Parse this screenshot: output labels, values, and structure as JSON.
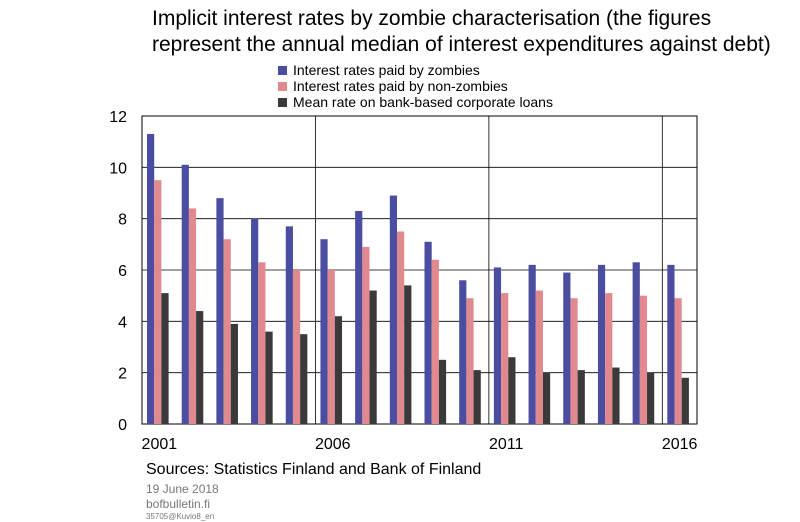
{
  "chart_data": {
    "type": "bar",
    "title": "Implicit interest rates by zombie characterisation (the figures\nrepresent the annual median of interest expenditures against debt)",
    "categories": [
      "2001",
      "2002",
      "2003",
      "2004",
      "2005",
      "2006",
      "2007",
      "2008",
      "2009",
      "2010",
      "2011",
      "2012",
      "2013",
      "2014",
      "2015",
      "2016"
    ],
    "x_tick_labels": [
      "2001",
      "2006",
      "2011",
      "2016"
    ],
    "y_ticks": [
      0,
      2,
      4,
      6,
      8,
      10,
      12
    ],
    "ylim": [
      0,
      12
    ],
    "grid": true,
    "legend_position": "top-center",
    "series": [
      {
        "name": "Interest rates paid by zombies",
        "color": "#4b4da0",
        "values": [
          11.3,
          10.1,
          8.8,
          8.0,
          7.7,
          7.2,
          8.3,
          8.9,
          7.1,
          5.6,
          6.1,
          6.2,
          5.9,
          6.2,
          6.3,
          6.2
        ]
      },
      {
        "name": "Interest rates paid by non-zombies",
        "color": "#e08a8f",
        "values": [
          9.5,
          8.4,
          7.2,
          6.3,
          6.0,
          6.0,
          6.9,
          7.5,
          6.4,
          4.9,
          5.1,
          5.2,
          4.9,
          5.1,
          5.0,
          4.9
        ]
      },
      {
        "name": "Mean rate on bank-based corporate loans",
        "color": "#3a3a3a",
        "values": [
          5.1,
          4.4,
          3.9,
          3.6,
          3.5,
          4.2,
          5.2,
          5.4,
          2.5,
          2.1,
          2.6,
          2.0,
          2.1,
          2.2,
          2.0,
          1.8
        ]
      }
    ]
  },
  "footer": {
    "sources": "Sources: Statistics Finland and Bank of Finland",
    "date": "19 June 2018",
    "site": "bofbulletin.fi",
    "code": "35705@Kuvio8_en"
  }
}
